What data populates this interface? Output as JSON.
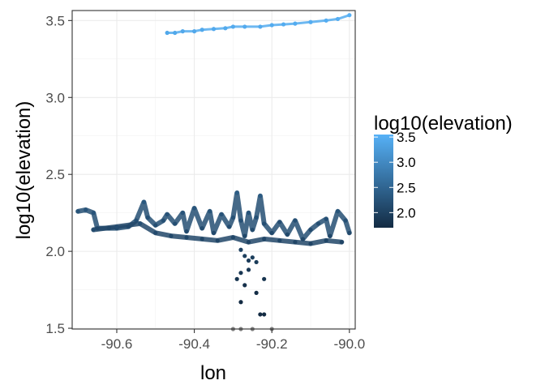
{
  "chart_data": {
    "type": "scatter",
    "title": "",
    "xlabel": "lon",
    "ylabel": "log10(elevation)",
    "xlim": [
      -90.715,
      -89.985
    ],
    "ylim": [
      1.495,
      3.565
    ],
    "x_ticks": [
      -90.6,
      -90.4,
      -90.2,
      -90.0
    ],
    "x_tick_labels": [
      "-90.6",
      "-90.4",
      "-90.2",
      "-90.0"
    ],
    "y_ticks": [
      1.5,
      2.0,
      2.5,
      3.0,
      3.5
    ],
    "y_tick_labels": [
      "1.5",
      "2.0",
      "2.5",
      "3.0",
      "3.5"
    ],
    "grid": true,
    "legend": {
      "title": "log10(elevation)",
      "placement": "right",
      "type": "colorbar",
      "labels": [
        "3.5",
        "3.0",
        "2.5",
        "2.0"
      ],
      "values": [
        3.5,
        3.0,
        2.5,
        2.0
      ],
      "range": [
        1.7,
        3.55
      ]
    },
    "color_scale": {
      "low": "#132B43",
      "high": "#56B1F7",
      "low_value": 1.7,
      "high_value": 3.55
    },
    "series": [
      {
        "values": [
          [
            -90.47,
            3.42
          ],
          [
            -90.45,
            3.42
          ],
          [
            -90.43,
            3.43
          ],
          [
            -90.4,
            3.43
          ],
          [
            -90.38,
            3.44
          ],
          [
            -90.35,
            3.445
          ],
          [
            -90.32,
            3.45
          ],
          [
            -90.3,
            3.46
          ],
          [
            -90.27,
            3.46
          ],
          [
            -90.23,
            3.46
          ],
          [
            -90.2,
            3.47
          ],
          [
            -90.17,
            3.475
          ],
          [
            -90.14,
            3.48
          ],
          [
            -90.1,
            3.49
          ],
          [
            -90.06,
            3.5
          ],
          [
            -90.03,
            3.51
          ],
          [
            -90.0,
            3.535
          ]
        ]
      },
      {
        "values": [
          [
            -90.7,
            2.26
          ],
          [
            -90.68,
            2.27
          ],
          [
            -90.66,
            2.25
          ],
          [
            -90.65,
            2.15
          ],
          [
            -90.62,
            2.15
          ],
          [
            -90.6,
            2.15
          ],
          [
            -90.57,
            2.16
          ],
          [
            -90.55,
            2.2
          ],
          [
            -90.53,
            2.32
          ],
          [
            -90.52,
            2.22
          ],
          [
            -90.5,
            2.17
          ],
          [
            -90.48,
            2.2
          ],
          [
            -90.47,
            2.24
          ],
          [
            -90.45,
            2.18
          ],
          [
            -90.43,
            2.25
          ],
          [
            -90.42,
            2.13
          ],
          [
            -90.4,
            2.28
          ],
          [
            -90.38,
            2.15
          ],
          [
            -90.36,
            2.26
          ],
          [
            -90.35,
            2.12
          ],
          [
            -90.33,
            2.24
          ],
          [
            -90.31,
            2.16
          ],
          [
            -90.3,
            2.22
          ],
          [
            -90.29,
            2.38
          ],
          [
            -90.28,
            2.2
          ],
          [
            -90.27,
            2.1
          ],
          [
            -90.26,
            2.25
          ],
          [
            -90.25,
            2.14
          ],
          [
            -90.24,
            2.22
          ],
          [
            -90.23,
            2.36
          ],
          [
            -90.22,
            2.18
          ],
          [
            -90.2,
            2.12
          ],
          [
            -90.18,
            2.19
          ],
          [
            -90.16,
            2.11
          ],
          [
            -90.14,
            2.2
          ],
          [
            -90.12,
            2.08
          ],
          [
            -90.1,
            2.14
          ],
          [
            -90.08,
            2.18
          ],
          [
            -90.06,
            2.21
          ],
          [
            -90.05,
            2.1
          ],
          [
            -90.03,
            2.26
          ],
          [
            -90.01,
            2.2
          ],
          [
            -90.0,
            2.12
          ]
        ]
      },
      {
        "values": [
          [
            -90.66,
            2.14
          ],
          [
            -90.6,
            2.16
          ],
          [
            -90.54,
            2.18
          ],
          [
            -90.5,
            2.12
          ],
          [
            -90.46,
            2.1
          ],
          [
            -90.42,
            2.09
          ],
          [
            -90.38,
            2.08
          ],
          [
            -90.34,
            2.07
          ],
          [
            -90.3,
            2.09
          ],
          [
            -90.26,
            2.06
          ],
          [
            -90.22,
            2.08
          ],
          [
            -90.18,
            2.07
          ],
          [
            -90.14,
            2.06
          ],
          [
            -90.1,
            2.05
          ],
          [
            -90.06,
            2.07
          ],
          [
            -90.02,
            2.06
          ]
        ]
      },
      {
        "values": [
          [
            -90.28,
            2.01
          ],
          [
            -90.27,
            1.97
          ],
          [
            -90.26,
            1.94
          ],
          [
            -90.25,
            1.96
          ],
          [
            -90.24,
            1.93
          ],
          [
            -90.28,
            1.86
          ],
          [
            -90.26,
            1.88
          ],
          [
            -90.29,
            1.82
          ],
          [
            -90.22,
            1.82
          ],
          [
            -90.27,
            1.78
          ],
          [
            -90.24,
            1.73
          ],
          [
            -90.28,
            1.67
          ],
          [
            -90.23,
            1.59
          ],
          [
            -90.22,
            1.59
          ],
          [
            -90.3,
            1.49
          ],
          [
            -90.28,
            1.49
          ],
          [
            -90.25,
            1.49
          ],
          [
            -90.2,
            1.49
          ]
        ]
      }
    ]
  }
}
